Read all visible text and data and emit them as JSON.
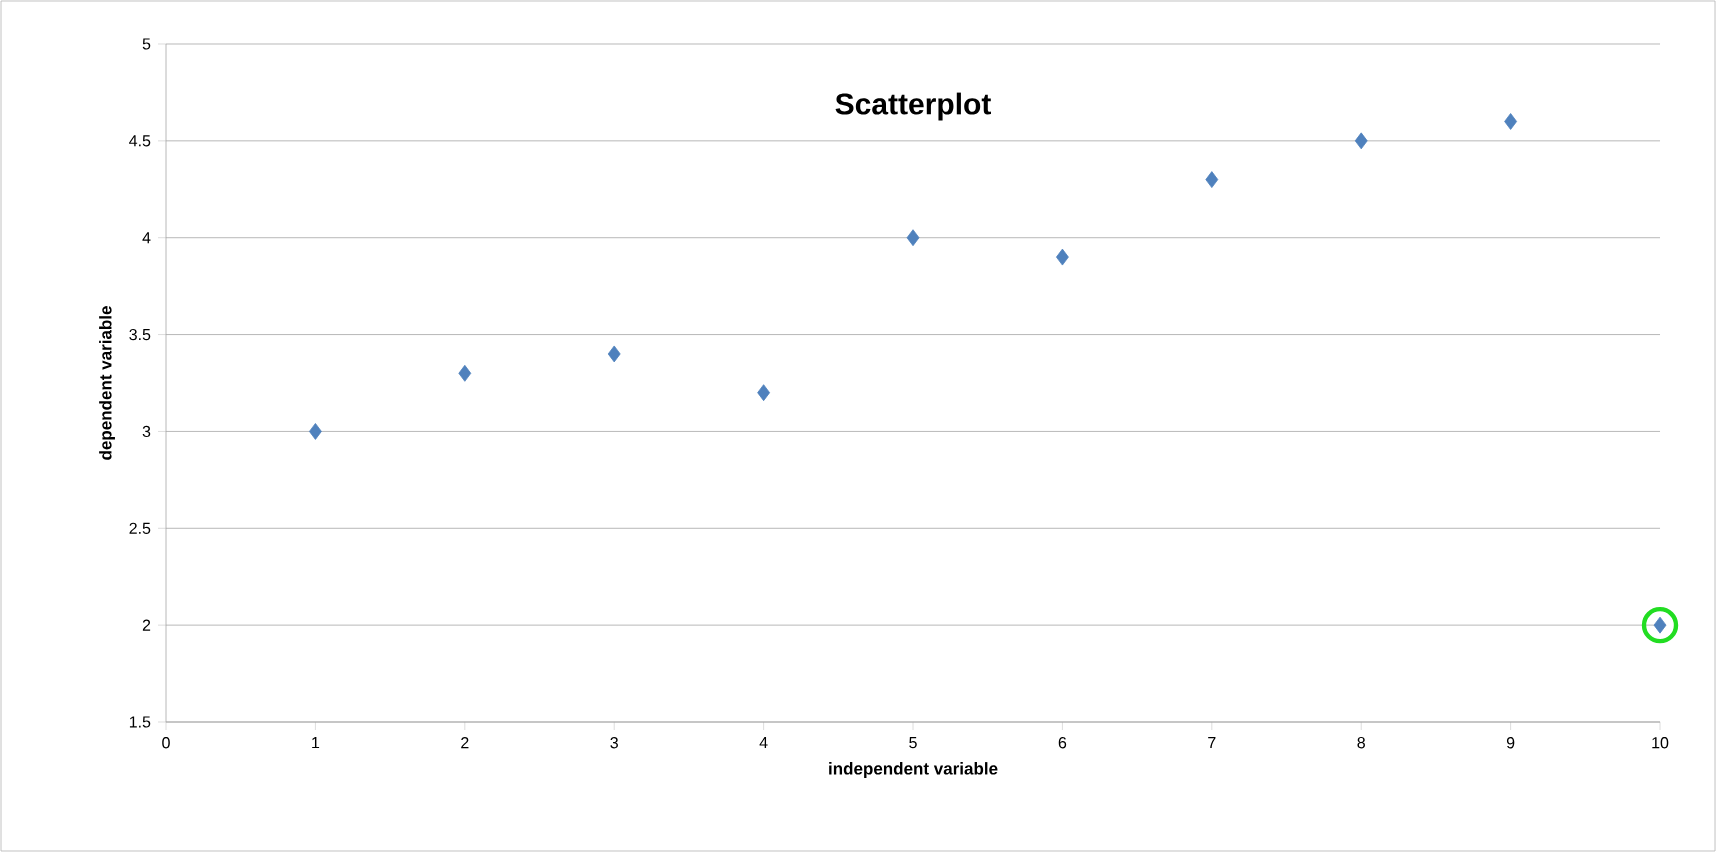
{
  "chart_data": {
    "type": "scatter",
    "title": "Scatterplot",
    "xlabel": "independent variable",
    "ylabel": "dependent variable",
    "xlim": [
      0,
      10
    ],
    "ylim": [
      1.5,
      5
    ],
    "xticks": [
      0,
      1,
      2,
      3,
      4,
      5,
      6,
      7,
      8,
      9,
      10
    ],
    "yticks": [
      1.5,
      2,
      2.5,
      3,
      3.5,
      4,
      4.5,
      5
    ],
    "grid": "y",
    "series": [
      {
        "color": "#4f81bd",
        "marker": "diamond",
        "x": [
          1,
          2,
          3,
          4,
          5,
          6,
          7,
          8,
          9,
          10
        ],
        "values": [
          3,
          3.3,
          3.4,
          3.2,
          4,
          3.9,
          4.3,
          4.5,
          4.6,
          2
        ]
      },
      {
        "color": "#22dd22",
        "marker": "circle",
        "x": [
          10
        ],
        "values": [
          2
        ]
      }
    ]
  }
}
